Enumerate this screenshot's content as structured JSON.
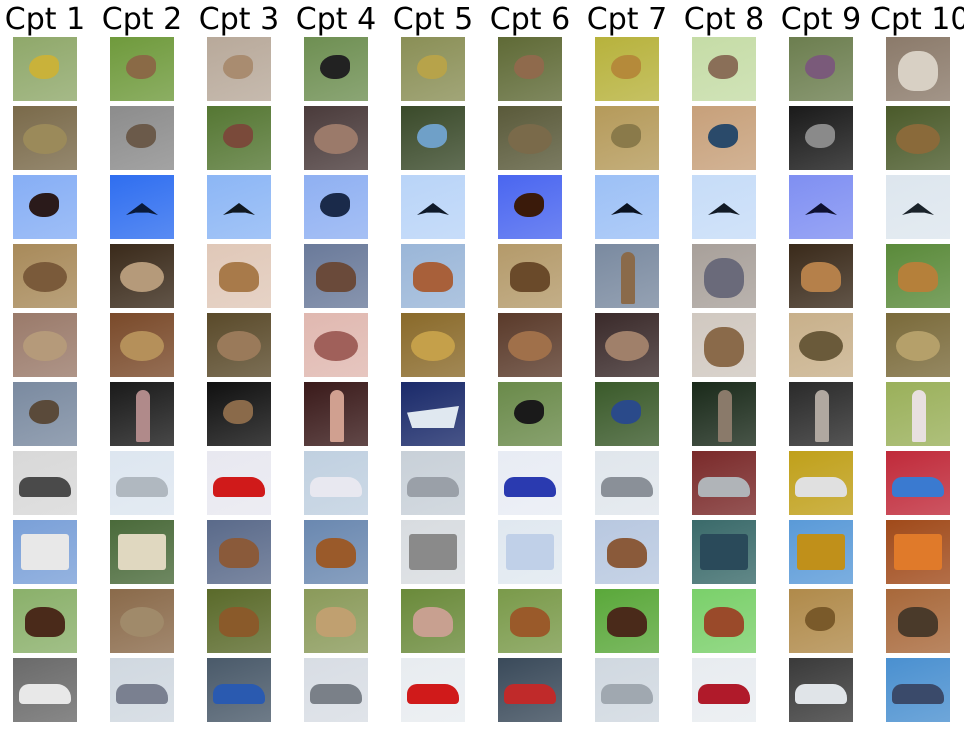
{
  "column_titles": [
    "Cpt 1",
    "Cpt 2",
    "Cpt 3",
    "Cpt 4",
    "Cpt 5",
    "Cpt 6",
    "Cpt 7",
    "Cpt 8",
    "Cpt 9",
    "Cpt 10"
  ],
  "tiles": [
    [
      {
        "subject": "yellow-bird",
        "bg": "#8fa86a",
        "fg": "#c9b23a"
      },
      {
        "subject": "brown-bird",
        "bg": "#6f9a3c",
        "fg": "#8a6a46"
      },
      {
        "subject": "brown-bird",
        "bg": "#b8a99a",
        "fg": "#a98c70"
      },
      {
        "subject": "black-bird",
        "bg": "#6e8f52",
        "fg": "#222222"
      },
      {
        "subject": "olive-bird",
        "bg": "#8a8f56",
        "fg": "#b7a34a"
      },
      {
        "subject": "brown-bird",
        "bg": "#5f6a36",
        "fg": "#8f6a4c"
      },
      {
        "subject": "yellow-bird",
        "bg": "#b7b23c",
        "fg": "#b58a3a"
      },
      {
        "subject": "brown-bird",
        "bg": "#c5dca6",
        "fg": "#8a6f58"
      },
      {
        "subject": "purple-bird",
        "bg": "#6c7e4f",
        "fg": "#7a5a7a"
      },
      {
        "subject": "cat",
        "bg": "#8b7a6a",
        "fg": "#d8d0c4"
      }
    ],
    [
      {
        "subject": "frog",
        "bg": "#7a6a4a",
        "fg": "#9b8a5a"
      },
      {
        "subject": "sparrow",
        "bg": "#8c8c8c",
        "fg": "#6b5a4a"
      },
      {
        "subject": "green-bird",
        "bg": "#557733",
        "fg": "#7a4a3a"
      },
      {
        "subject": "frog",
        "bg": "#4a3b3b",
        "fg": "#9b7a6a"
      },
      {
        "subject": "blue-bird",
        "bg": "#3a4a2a",
        "fg": "#6fa0c8"
      },
      {
        "subject": "frog",
        "bg": "#5a5a3a",
        "fg": "#7a6a4a"
      },
      {
        "subject": "bird",
        "bg": "#b59a5a",
        "fg": "#8a7a4a"
      },
      {
        "subject": "peacock",
        "bg": "#c7a07a",
        "fg": "#2a4a6a"
      },
      {
        "subject": "eagle",
        "bg": "#1a1a1a",
        "fg": "#8a8a8a"
      },
      {
        "subject": "frog",
        "bg": "#4a5a2a",
        "fg": "#8a6a3a"
      }
    ],
    [
      {
        "subject": "bird",
        "bg": "#86aef5",
        "fg": "#2a1a1a"
      },
      {
        "subject": "airplane",
        "bg": "#2f6ef0",
        "fg": "#0a1a3a"
      },
      {
        "subject": "airplane",
        "bg": "#8cb6f5",
        "fg": "#101820"
      },
      {
        "subject": "bird",
        "bg": "#8fb0f2",
        "fg": "#1a2a4a"
      },
      {
        "subject": "airplane",
        "bg": "#b9d4f8",
        "fg": "#0f1a2a"
      },
      {
        "subject": "bird",
        "bg": "#4a66f0",
        "fg": "#3a1a0a"
      },
      {
        "subject": "airplane",
        "bg": "#9cc0f6",
        "fg": "#0a1220"
      },
      {
        "subject": "airplane",
        "bg": "#c6dcf8",
        "fg": "#121a26"
      },
      {
        "subject": "airplane",
        "bg": "#7f8ff2",
        "fg": "#0e1030"
      },
      {
        "subject": "airplane",
        "bg": "#dde6ee",
        "fg": "#1a222a"
      }
    ],
    [
      {
        "subject": "frog",
        "bg": "#a88a5a",
        "fg": "#7a5a3a"
      },
      {
        "subject": "frog",
        "bg": "#3a2a1a",
        "fg": "#b59a7a"
      },
      {
        "subject": "deer",
        "bg": "#e0c8b8",
        "fg": "#a87a4a"
      },
      {
        "subject": "horse",
        "bg": "#6a7a9a",
        "fg": "#6a4a3a"
      },
      {
        "subject": "horse",
        "bg": "#9ab6d8",
        "fg": "#a8603a"
      },
      {
        "subject": "deer",
        "bg": "#b49a6a",
        "fg": "#6a4a2a"
      },
      {
        "subject": "ostrich",
        "bg": "#7a8aa0",
        "fg": "#8a6a4a"
      },
      {
        "subject": "cat",
        "bg": "#a8a09a",
        "fg": "#6a6a7a"
      },
      {
        "subject": "deer",
        "bg": "#3a2a1a",
        "fg": "#b5804a"
      },
      {
        "subject": "deer",
        "bg": "#5a8a3a",
        "fg": "#b5803a"
      }
    ],
    [
      {
        "subject": "frog",
        "bg": "#9a7a6a",
        "fg": "#b59a7a"
      },
      {
        "subject": "frog",
        "bg": "#7a4a2a",
        "fg": "#b5905a"
      },
      {
        "subject": "frog",
        "bg": "#5a4a2a",
        "fg": "#9a7a5a"
      },
      {
        "subject": "frog",
        "bg": "#e0b8b0",
        "fg": "#a0605a"
      },
      {
        "subject": "frog",
        "bg": "#8a6a2a",
        "fg": "#c5a04a"
      },
      {
        "subject": "frog",
        "bg": "#5a3a2a",
        "fg": "#a0704a"
      },
      {
        "subject": "frog",
        "bg": "#3a2a2a",
        "fg": "#a0806a"
      },
      {
        "subject": "cat",
        "bg": "#d0c8c0",
        "fg": "#8a6a4a"
      },
      {
        "subject": "frog",
        "bg": "#c8b08a",
        "fg": "#6a5a3a"
      },
      {
        "subject": "frog",
        "bg": "#7a6a3a",
        "fg": "#b5a06a"
      }
    ],
    [
      {
        "subject": "bird",
        "bg": "#7a8aa0",
        "fg": "#5a4a3a"
      },
      {
        "subject": "ostrich",
        "bg": "#1a1a1a",
        "fg": "#b08a8a"
      },
      {
        "subject": "bird",
        "bg": "#101010",
        "fg": "#8a6a4a"
      },
      {
        "subject": "ostrich",
        "bg": "#3a1a1a",
        "fg": "#d0a090"
      },
      {
        "subject": "ship",
        "bg": "#1a2a6a",
        "fg": "#e0e8f0"
      },
      {
        "subject": "bird",
        "bg": "#6a8a4a",
        "fg": "#1a1a1a"
      },
      {
        "subject": "peacock",
        "bg": "#3a5a2a",
        "fg": "#2a4a8a"
      },
      {
        "subject": "ostrich",
        "bg": "#1a2a1a",
        "fg": "#8a7a6a"
      },
      {
        "subject": "ostrich",
        "bg": "#2a2a2a",
        "fg": "#b0a8a0"
      },
      {
        "subject": "ostrich",
        "bg": "#9ab05a",
        "fg": "#e8e0e0"
      }
    ],
    [
      {
        "subject": "car",
        "bg": "#d8d8d8",
        "fg": "#4a4a4a"
      },
      {
        "subject": "car",
        "bg": "#dde6f0",
        "fg": "#b0b8c0"
      },
      {
        "subject": "car",
        "bg": "#e8e8f0",
        "fg": "#d01a1a"
      },
      {
        "subject": "car",
        "bg": "#c0d0e0",
        "fg": "#e8e8f0"
      },
      {
        "subject": "car",
        "bg": "#c8d0d8",
        "fg": "#9aa0a8"
      },
      {
        "subject": "car",
        "bg": "#e8ecf4",
        "fg": "#2a3ab0"
      },
      {
        "subject": "car",
        "bg": "#e0e6ec",
        "fg": "#8a9098"
      },
      {
        "subject": "car",
        "bg": "#7a2a2a",
        "fg": "#b0b4b8"
      },
      {
        "subject": "car",
        "bg": "#c0a01a",
        "fg": "#e0e0e0"
      },
      {
        "subject": "car",
        "bg": "#c02a3a",
        "fg": "#3a7ad0"
      }
    ],
    [
      {
        "subject": "truck",
        "bg": "#7aa0d8",
        "fg": "#e8e8e8"
      },
      {
        "subject": "truck",
        "bg": "#4a6a3a",
        "fg": "#e0d8c0"
      },
      {
        "subject": "horse",
        "bg": "#5a6a8a",
        "fg": "#8a5a3a"
      },
      {
        "subject": "horse",
        "bg": "#6a88b0",
        "fg": "#9a5a2a"
      },
      {
        "subject": "truck",
        "bg": "#d8dce0",
        "fg": "#8a8a8a"
      },
      {
        "subject": "truck",
        "bg": "#e0e8f0",
        "fg": "#c0d0e8"
      },
      {
        "subject": "horse",
        "bg": "#b8c8e0",
        "fg": "#8a5a3a"
      },
      {
        "subject": "truck",
        "bg": "#3a6a6a",
        "fg": "#2a4a5a"
      },
      {
        "subject": "truck",
        "bg": "#5a9ad8",
        "fg": "#c0901a"
      },
      {
        "subject": "truck",
        "bg": "#a04a1a",
        "fg": "#e07a2a"
      }
    ],
    [
      {
        "subject": "horse",
        "bg": "#8ab06a",
        "fg": "#4a2a1a"
      },
      {
        "subject": "frog",
        "bg": "#8a6a4a",
        "fg": "#a08a6a"
      },
      {
        "subject": "deer",
        "bg": "#5a6a2a",
        "fg": "#8a5a2a"
      },
      {
        "subject": "dog",
        "bg": "#8a9a5a",
        "fg": "#c0a070"
      },
      {
        "subject": "horse",
        "bg": "#6a8a3a",
        "fg": "#c8a090"
      },
      {
        "subject": "deer",
        "bg": "#7a9a4a",
        "fg": "#9a5a2a"
      },
      {
        "subject": "horse",
        "bg": "#5aa83a",
        "fg": "#4a2a1a"
      },
      {
        "subject": "horse",
        "bg": "#7ad06a",
        "fg": "#9a4a2a"
      },
      {
        "subject": "bird",
        "bg": "#b08a4a",
        "fg": "#7a5a2a"
      },
      {
        "subject": "deer",
        "bg": "#a8683a",
        "fg": "#4a3a2a"
      }
    ],
    [
      {
        "subject": "car",
        "bg": "#6a6a6a",
        "fg": "#e8e8e8"
      },
      {
        "subject": "car",
        "bg": "#d0d8e0",
        "fg": "#7a8090"
      },
      {
        "subject": "car",
        "bg": "#4a5a6a",
        "fg": "#2a5ab0"
      },
      {
        "subject": "car",
        "bg": "#d8dde4",
        "fg": "#7a8088"
      },
      {
        "subject": "car",
        "bg": "#e8ecf0",
        "fg": "#d01a1a"
      },
      {
        "subject": "car",
        "bg": "#3a4a5a",
        "fg": "#c02a2a"
      },
      {
        "subject": "car",
        "bg": "#d0d8e0",
        "fg": "#a0a8b0"
      },
      {
        "subject": "car",
        "bg": "#e8ecf0",
        "fg": "#b01a2a"
      },
      {
        "subject": "car",
        "bg": "#3a3a3a",
        "fg": "#e0e4e8"
      },
      {
        "subject": "car",
        "bg": "#4a90d0",
        "fg": "#3a4a6a"
      }
    ]
  ]
}
